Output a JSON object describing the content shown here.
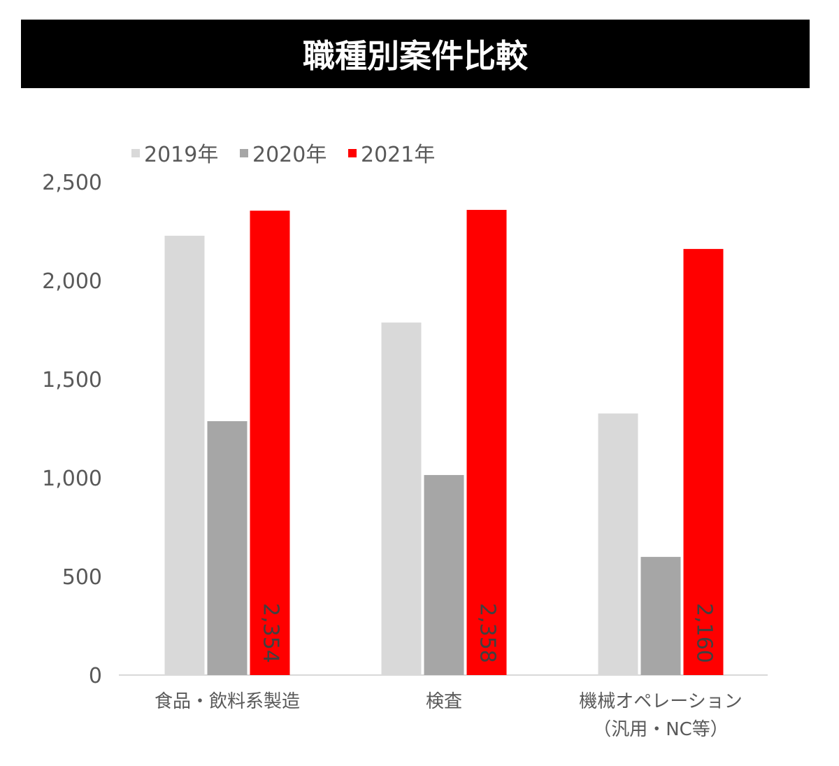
{
  "chart_data": {
    "type": "bar",
    "title": "職種別案件比較",
    "categories": [
      "食品・飲料系製造",
      "検査",
      "機械オペレーション\n（汎用・NC等）"
    ],
    "series": [
      {
        "name": "2019年",
        "color": "#d9d9d9",
        "values": [
          2227,
          1787,
          1326
        ]
      },
      {
        "name": "2020年",
        "color": "#a6a6a6",
        "values": [
          1287,
          1014,
          599
        ]
      },
      {
        "name": "2021年",
        "color": "#ff0000",
        "values": [
          2354,
          2358,
          2160
        ]
      }
    ],
    "data_labels": {
      "series": "2021年",
      "labels": [
        "2,354",
        "2,358",
        "2,160"
      ]
    },
    "yticks": [
      0,
      500,
      1000,
      1500,
      2000,
      2500
    ],
    "ytick_labels": [
      "0",
      "500",
      "1,000",
      "1,500",
      "2,000",
      "2,500"
    ],
    "ylim": [
      0,
      2500
    ],
    "xlabel": "",
    "ylabel": "",
    "grid": false,
    "legend": "top-left"
  }
}
